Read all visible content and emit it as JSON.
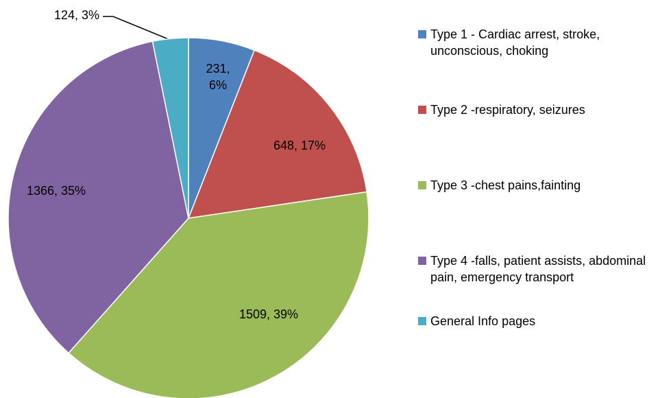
{
  "chart_data": {
    "type": "pie",
    "categories": [
      "Type 1 - Cardiac arrest, stroke, unconscious, choking",
      "Type 2 -respiratory, seizures",
      "Type 3 -chest pains,fainting",
      "Type 4 -falls, patient assists, abdominal pain, emergency transport",
      "General Info pages"
    ],
    "values": [
      231,
      648,
      1509,
      1366,
      124
    ],
    "value_labels": [
      "231, 6%",
      "648, 17%",
      "1509, 39%",
      "1366, 35%",
      "124, 3%"
    ],
    "colors": [
      "#4f81bd",
      "#c0504d",
      "#9bbb59",
      "#8064a2",
      "#4bacc6"
    ],
    "legend": "right"
  }
}
